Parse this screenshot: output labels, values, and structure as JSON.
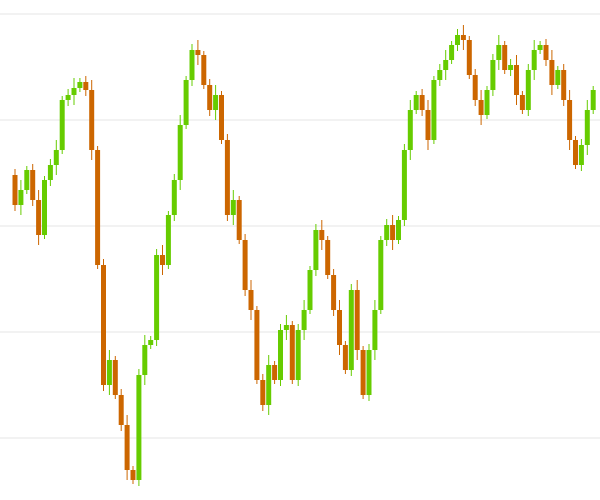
{
  "chart_data": {
    "type": "candlestick",
    "open": [
      325,
      295,
      310,
      330,
      300,
      265,
      320,
      335,
      350,
      400,
      405,
      412,
      418,
      410,
      350,
      235,
      115,
      140,
      105,
      75,
      30,
      20,
      125,
      155,
      160,
      245,
      235,
      285,
      320,
      375,
      420,
      450,
      445,
      415,
      390,
      405,
      360,
      285,
      300,
      260,
      210,
      190,
      120,
      95,
      135,
      120,
      170,
      175,
      120,
      170,
      190,
      230,
      270,
      260,
      225,
      190,
      155,
      130,
      210,
      150,
      105,
      150,
      190,
      260,
      275,
      260,
      280,
      350,
      390,
      405,
      390,
      360,
      420,
      430,
      440,
      455,
      465,
      460,
      425,
      400,
      385,
      410,
      440,
      455,
      430,
      435,
      405,
      390,
      430,
      450,
      455,
      440,
      415,
      430,
      400,
      360,
      335,
      355,
      390
    ],
    "high": [
      331,
      320,
      334,
      336,
      310,
      324,
      341,
      360,
      404,
      411,
      422,
      422,
      424,
      420,
      354,
      241,
      150,
      144,
      111,
      85,
      34,
      131,
      165,
      164,
      251,
      255,
      289,
      326,
      385,
      424,
      456,
      460,
      449,
      421,
      415,
      409,
      366,
      310,
      304,
      266,
      220,
      194,
      126,
      145,
      139,
      176,
      185,
      179,
      176,
      200,
      234,
      276,
      280,
      264,
      231,
      200,
      159,
      216,
      220,
      154,
      156,
      200,
      264,
      281,
      285,
      284,
      356,
      400,
      409,
      411,
      400,
      424,
      436,
      450,
      459,
      471,
      475,
      464,
      431,
      410,
      414,
      446,
      465,
      459,
      441,
      445,
      409,
      436,
      460,
      459,
      461,
      450,
      434,
      436,
      410,
      364,
      361,
      400,
      414
    ],
    "low": [
      289,
      285,
      306,
      294,
      255,
      261,
      314,
      325,
      346,
      394,
      395,
      408,
      404,
      340,
      231,
      109,
      105,
      101,
      69,
      20,
      16,
      14,
      115,
      151,
      154,
      225,
      231,
      279,
      310,
      371,
      414,
      435,
      411,
      384,
      380,
      356,
      279,
      275,
      256,
      204,
      180,
      116,
      89,
      85,
      116,
      114,
      160,
      116,
      114,
      160,
      186,
      224,
      250,
      221,
      184,
      145,
      126,
      124,
      140,
      101,
      99,
      140,
      186,
      254,
      250,
      256,
      274,
      340,
      386,
      384,
      350,
      356,
      414,
      420,
      436,
      449,
      450,
      421,
      394,
      375,
      381,
      404,
      430,
      426,
      424,
      395,
      386,
      384,
      420,
      446,
      434,
      405,
      411,
      394,
      350,
      331,
      329,
      345,
      386
    ],
    "close": [
      295,
      310,
      330,
      300,
      265,
      320,
      335,
      350,
      400,
      405,
      412,
      418,
      410,
      350,
      235,
      115,
      140,
      105,
      75,
      30,
      20,
      125,
      155,
      160,
      245,
      235,
      285,
      320,
      375,
      420,
      450,
      445,
      415,
      390,
      405,
      360,
      285,
      300,
      260,
      210,
      190,
      120,
      95,
      135,
      120,
      170,
      175,
      120,
      170,
      190,
      230,
      270,
      260,
      225,
      190,
      155,
      130,
      210,
      150,
      105,
      150,
      190,
      260,
      275,
      260,
      280,
      350,
      390,
      405,
      390,
      360,
      420,
      430,
      440,
      455,
      465,
      460,
      425,
      400,
      385,
      410,
      440,
      455,
      430,
      435,
      405,
      390,
      430,
      450,
      455,
      440,
      415,
      430,
      400,
      360,
      335,
      355,
      390,
      410
    ],
    "up_color": "#66cc00",
    "down_color": "#cc6600",
    "ylim": [
      0,
      500
    ],
    "yticks": [
      62,
      168,
      274,
      380,
      486
    ],
    "grid": true
  }
}
